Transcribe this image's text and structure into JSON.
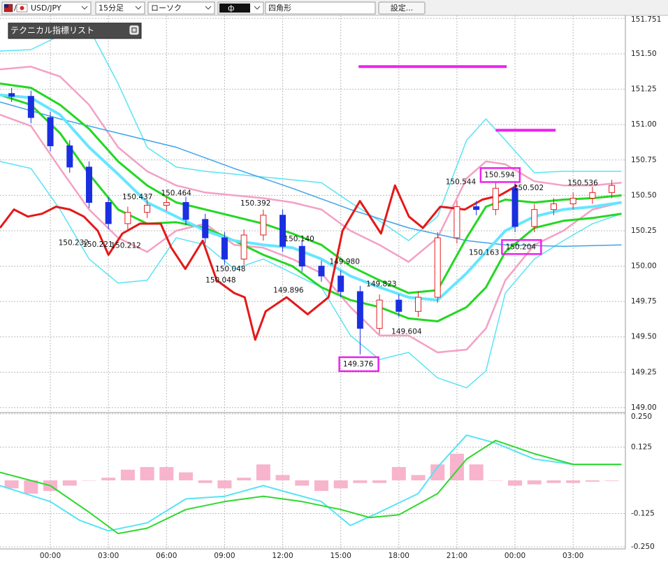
{
  "toolbar": {
    "symbol": "USD/JPY",
    "timeframe": "15分足",
    "chart_style": "ローソク",
    "draw_tool": "四角形",
    "settings": "設定..."
  },
  "indicator_list": "テクニカル指標リスト",
  "chart_data": [
    {
      "type": "candlestick",
      "xlim": [
        -2.6,
        29.7
      ],
      "ylim": [
        148.965,
        151.772
      ],
      "yticks": [
        {
          "value": 149,
          "label": "149.00"
        },
        149.25,
        {
          "value": 149.5,
          "label": "149.50"
        },
        149.75,
        {
          "value": 150,
          "label": "150.00"
        },
        150.25,
        {
          "value": 150.5,
          "label": "150.50"
        },
        150.75,
        {
          "value": 151,
          "label": "151.00"
        },
        151.25,
        {
          "value": 151.5,
          "label": "151.50"
        },
        151.751
      ],
      "grid": true,
      "up_color": "#e02020",
      "down_color": "#1a2fe0",
      "x": [
        -2,
        -1,
        0,
        1,
        2,
        3,
        4,
        5,
        6,
        7,
        8,
        9,
        10,
        11,
        12,
        13,
        14,
        15,
        16,
        17,
        18,
        19,
        20,
        21,
        22,
        23,
        24,
        25,
        26,
        27,
        28,
        29
      ],
      "open": [
        151.22,
        151.2,
        151.05,
        150.85,
        150.7,
        150.45,
        150.3,
        150.38,
        150.43,
        150.45,
        150.33,
        150.2,
        150.05,
        150.22,
        150.36,
        150.14,
        150.0,
        149.93,
        149.82,
        149.56,
        149.76,
        149.68,
        149.78,
        150.2,
        150.42,
        150.4,
        150.55,
        150.28,
        150.4,
        150.44,
        150.48,
        150.52
      ],
      "high": [
        151.26,
        151.24,
        151.09,
        150.89,
        150.74,
        150.49,
        150.42,
        150.47,
        150.49,
        150.49,
        150.37,
        150.24,
        150.26,
        150.4,
        150.4,
        150.18,
        150.04,
        149.97,
        149.86,
        149.8,
        149.8,
        149.82,
        150.24,
        150.46,
        150.46,
        150.594,
        150.59,
        150.44,
        150.48,
        150.52,
        150.56,
        150.61
      ],
      "low": [
        151.16,
        151.01,
        150.81,
        150.66,
        150.41,
        150.26,
        150.26,
        150.34,
        150.39,
        150.29,
        150.16,
        150.01,
        150.01,
        150.18,
        150.1,
        149.96,
        149.89,
        149.78,
        149.376,
        149.52,
        149.64,
        149.64,
        149.74,
        150.16,
        150.36,
        150.36,
        150.24,
        150.24,
        150.36,
        150.4,
        150.44,
        150.48
      ],
      "close": [
        151.2,
        151.05,
        150.85,
        150.7,
        150.45,
        150.3,
        150.38,
        150.43,
        150.45,
        150.33,
        150.2,
        150.05,
        150.22,
        150.36,
        150.14,
        150.0,
        149.93,
        149.82,
        149.56,
        149.76,
        149.68,
        149.78,
        150.2,
        150.42,
        150.4,
        150.55,
        150.28,
        150.4,
        150.44,
        150.48,
        150.52,
        150.57
      ],
      "overlays": [
        {
          "color": "#58e4f4",
          "width": 1.5,
          "x": [
            -2.6,
            -1,
            0.5,
            2,
            3.5,
            5,
            6.5,
            8,
            9.5,
            11,
            12.5,
            14,
            15.5,
            17,
            18.5,
            20,
            21.5,
            22.5,
            23.5,
            25,
            26.5,
            28,
            29.5
          ],
          "values": [
            151.52,
            151.53,
            151.63,
            151.68,
            151.29,
            150.84,
            150.7,
            150.67,
            150.65,
            150.63,
            150.61,
            150.59,
            150.45,
            150.32,
            150.18,
            150.35,
            150.89,
            151.04,
            150.89,
            150.66,
            150.67,
            150.67,
            150.67
          ]
        },
        {
          "color": "#58e4f4",
          "width": 1.5,
          "x": [
            -2.6,
            -1,
            0.5,
            2,
            3.5,
            5,
            6.5,
            8,
            9.5,
            11,
            12.5,
            14,
            15.5,
            17,
            18.5,
            20,
            21.5,
            22.5,
            23.5,
            25,
            26.5,
            28,
            29.5
          ],
          "values": [
            150.74,
            150.69,
            150.4,
            150.05,
            149.88,
            149.9,
            150.2,
            150.15,
            149.98,
            150.05,
            149.95,
            149.85,
            149.51,
            149.34,
            149.39,
            149.21,
            149.14,
            149.26,
            149.81,
            150.05,
            150.18,
            150.3,
            150.37
          ]
        },
        {
          "color": "#f4a0c4",
          "width": 2.5,
          "x": [
            -2.6,
            -1,
            0.5,
            2,
            3.5,
            5,
            6.5,
            8,
            9.5,
            11,
            12.5,
            14,
            15.5,
            17,
            18.5,
            20,
            21.5,
            22.5,
            23.5,
            25,
            26.5,
            28,
            29.5
          ],
          "values": [
            151.39,
            151.41,
            151.34,
            151.14,
            150.84,
            150.67,
            150.57,
            150.52,
            150.5,
            150.48,
            150.45,
            150.4,
            150.25,
            150.15,
            150.03,
            150.2,
            150.62,
            150.74,
            150.72,
            150.6,
            150.57,
            150.57,
            150.59
          ]
        },
        {
          "color": "#f4a0c4",
          "width": 2.5,
          "x": [
            -2.6,
            -1,
            0.5,
            2,
            3.5,
            5,
            6.5,
            8,
            9.5,
            11,
            12.5,
            14,
            15.5,
            17,
            18.5,
            20,
            21.5,
            22.5,
            23.5,
            25,
            26.5,
            28,
            29.5
          ],
          "values": [
            151.07,
            150.99,
            150.69,
            150.4,
            150.2,
            150.1,
            150.25,
            150.3,
            150.15,
            150.13,
            150.05,
            149.95,
            149.71,
            149.51,
            149.51,
            149.39,
            149.41,
            149.56,
            149.9,
            150.15,
            150.25,
            150.4,
            150.45
          ]
        },
        {
          "color": "#3ca4ea",
          "width": 1.5,
          "x": [
            -2.6,
            0.5,
            3.5,
            6.5,
            9.5,
            12.5,
            15.5,
            18.5,
            21.5,
            23.5,
            26.5,
            29.5
          ],
          "values": [
            151.16,
            151.04,
            150.94,
            150.84,
            150.69,
            150.55,
            150.4,
            150.27,
            150.18,
            150.15,
            150.14,
            150.15
          ]
        },
        {
          "color": "#22d822",
          "width": 3,
          "x": [
            -2.6,
            -1,
            0.5,
            2,
            3.5,
            5,
            6.5,
            8,
            9.5,
            11,
            12.5,
            14,
            15.5,
            17,
            18.5,
            20,
            21.5,
            22.5,
            23.5,
            25,
            26.5,
            28,
            29.5
          ],
          "values": [
            151.29,
            151.26,
            151.14,
            150.97,
            150.74,
            150.57,
            150.45,
            150.4,
            150.35,
            150.3,
            150.23,
            150.15,
            150.0,
            149.9,
            149.81,
            149.83,
            150.2,
            150.42,
            150.47,
            150.45,
            150.47,
            150.48,
            150.5
          ]
        },
        {
          "color": "#22d822",
          "width": 3,
          "x": [
            -2.6,
            -1,
            0.5,
            2,
            3.5,
            5,
            6.5,
            8,
            9.5,
            11,
            12.5,
            14,
            15.5,
            17,
            18.5,
            20,
            21.5,
            22.5,
            23.5,
            25,
            26.5,
            28,
            29.5
          ],
          "values": [
            151.21,
            151.14,
            150.94,
            150.65,
            150.4,
            150.3,
            150.31,
            150.27,
            150.18,
            150.08,
            150.0,
            149.85,
            149.76,
            149.71,
            149.63,
            149.61,
            149.71,
            149.85,
            150.1,
            150.27,
            150.32,
            150.34,
            150.37
          ]
        },
        {
          "color": "#66e6ff",
          "width": 4,
          "x": [
            -2.6,
            -1,
            0.5,
            2,
            3.5,
            5,
            6.5,
            8,
            9.5,
            11,
            12.5,
            14,
            15.5,
            17,
            18.5,
            20,
            21.5,
            22.5,
            23.5,
            25,
            26.5,
            28,
            29.5
          ],
          "values": [
            151.21,
            151.19,
            151.07,
            150.84,
            150.65,
            150.45,
            150.35,
            150.25,
            150.18,
            150.15,
            150.13,
            150.05,
            149.93,
            149.85,
            149.78,
            149.76,
            149.95,
            150.1,
            150.25,
            150.35,
            150.4,
            150.42,
            150.45
          ]
        },
        {
          "color": "#e41818",
          "width": 3,
          "x": [
            -2.6,
            -1.88,
            -1.16,
            -0.43,
            0.29,
            1.01,
            1.73,
            2.45,
            3.0,
            3.72,
            4.62,
            5.7,
            6.25,
            6.97,
            7.87,
            8.59,
            9.49,
            10.04,
            10.58,
            11.12,
            12.2,
            13.29,
            14.37,
            15.09,
            15.99,
            17.08,
            17.8,
            18.52,
            19.24,
            20.14,
            21.41,
            22.31,
            23.21,
            24.12
          ],
          "values": [
            150.27,
            150.4,
            150.35,
            150.37,
            150.42,
            150.4,
            150.35,
            150.25,
            150.08,
            150.23,
            150.3,
            150.3,
            150.13,
            149.98,
            150.18,
            149.9,
            149.81,
            149.78,
            149.48,
            149.68,
            149.78,
            149.66,
            149.78,
            150.25,
            150.46,
            150.23,
            150.57,
            150.35,
            150.27,
            150.42,
            150.4,
            150.47,
            150.5,
            150.57
          ]
        }
      ],
      "annotations": [
        {
          "value": 150.232,
          "label": "150.232",
          "x": 1.2,
          "side": "low"
        },
        {
          "value": 150.221,
          "label": "150.221",
          "x": 2.45,
          "side": "low"
        },
        {
          "value": 150.212,
          "label": "150.212",
          "x": 3.9,
          "side": "low"
        },
        {
          "value": 150.437,
          "label": "150.437",
          "x": 4.5,
          "side": "high"
        },
        {
          "value": 150.464,
          "label": "150.464",
          "x": 6.5,
          "side": "high"
        },
        {
          "value": 150.392,
          "label": "150.392",
          "x": 10.6,
          "side": "high"
        },
        {
          "value": 150.14,
          "label": "150.140",
          "x": 12.85,
          "side": "high"
        },
        {
          "value": 150.048,
          "label": "150.048",
          "x": 9.3,
          "side": "low"
        },
        {
          "value": 150.048,
          "label": "150.048",
          "x": 8.8,
          "side": "low2"
        },
        {
          "value": 149.896,
          "label": "149.896",
          "x": 12.3,
          "side": "low"
        },
        {
          "value": 149.98,
          "label": "149.980",
          "x": 15.2,
          "side": "high"
        },
        {
          "value": 149.823,
          "label": "149.823",
          "x": 17.1,
          "side": "high"
        },
        {
          "value": 149.604,
          "label": "149.604",
          "x": 18.4,
          "side": "low"
        },
        {
          "value": 149.376,
          "label": "149.376",
          "x": 15.9,
          "side": "low",
          "boxed": true
        },
        {
          "value": 150.544,
          "label": "150.544",
          "x": 21.2,
          "side": "high"
        },
        {
          "value": 150.594,
          "label": "150.594",
          "x": 23.2,
          "side": "high",
          "boxed": true
        },
        {
          "value": 150.502,
          "label": "150.502",
          "x": 24.7,
          "side": "high"
        },
        {
          "value": 150.163,
          "label": "150.163",
          "x": 22.4,
          "side": "low"
        },
        {
          "value": 150.204,
          "label": "150.204",
          "x": 24.3,
          "side": "low",
          "boxed": true
        },
        {
          "value": 150.536,
          "label": "150.536",
          "x": 27.5,
          "side": "high"
        }
      ],
      "drawn_lines": [
        {
          "color": "#ee22ee",
          "y": 151.41,
          "x": [
            15.92,
            23.57
          ]
        },
        {
          "color": "#ee22ee",
          "y": 150.96,
          "x": [
            23.0,
            26.1
          ]
        }
      ]
    },
    {
      "type": "macd",
      "xlim": [
        -2.6,
        29.7
      ],
      "ylim": [
        -0.258,
        0.255
      ],
      "xticks": [
        {
          "value": 0,
          "label": "00:00"
        },
        {
          "value": 3,
          "label": "03:00"
        },
        {
          "value": 6,
          "label": "06:00"
        },
        {
          "value": 9,
          "label": "09:00"
        },
        {
          "value": 12,
          "label": "12:00"
        },
        {
          "value": 15,
          "label": "15:00"
        },
        {
          "value": 18,
          "label": "18:00"
        },
        {
          "value": 21,
          "label": "21:00"
        },
        {
          "value": 24,
          "label": "00:00"
        },
        {
          "value": 27,
          "label": "03:00"
        }
      ],
      "yticks": [
        {
          "value": 0.25,
          "label": "0.250"
        },
        0.125,
        -0.125,
        {
          "value": -0.25,
          "label": "-0.250"
        }
      ],
      "grid": true,
      "histogram": {
        "color": "#f7b4cc",
        "x": [
          -2,
          -1,
          0,
          1,
          2,
          3,
          4,
          5,
          6,
          7,
          8,
          9,
          10,
          11,
          12,
          13,
          14,
          15,
          16,
          17,
          18,
          19,
          20,
          21,
          22,
          23,
          24,
          25,
          26,
          27,
          28,
          29
        ],
        "values": [
          -0.03,
          -0.05,
          -0.04,
          -0.02,
          0.0,
          0.01,
          0.04,
          0.05,
          0.05,
          0.03,
          -0.01,
          -0.03,
          0.01,
          0.06,
          0.02,
          -0.02,
          -0.04,
          -0.03,
          -0.01,
          -0.01,
          0.05,
          0.02,
          0.06,
          0.1,
          0.06,
          0.0,
          -0.02,
          -0.015,
          -0.01,
          -0.01,
          -0.005,
          -0.002
        ]
      },
      "series": [
        {
          "color": "#55e4f4",
          "x": [
            -2.6,
            0,
            1.5,
            3,
            5,
            7,
            9,
            11,
            12,
            14,
            15.5,
            17,
            19,
            20,
            21.5,
            23,
            25,
            27,
            29.5
          ],
          "values": [
            -0.02,
            -0.08,
            -0.15,
            -0.19,
            -0.16,
            -0.07,
            -0.06,
            -0.02,
            -0.04,
            -0.08,
            -0.17,
            -0.12,
            -0.05,
            0.05,
            0.17,
            0.14,
            0.08,
            0.06,
            0.06
          ]
        },
        {
          "color": "#30d830",
          "x": [
            -2.6,
            0,
            2,
            3.5,
            5,
            7,
            9,
            11,
            13,
            15,
            16.5,
            18,
            20,
            21.5,
            23,
            25,
            27,
            29.5
          ],
          "values": [
            0.03,
            -0.02,
            -0.12,
            -0.2,
            -0.18,
            -0.11,
            -0.08,
            -0.06,
            -0.08,
            -0.11,
            -0.14,
            -0.13,
            -0.05,
            0.08,
            0.15,
            0.1,
            0.06,
            0.06
          ]
        }
      ]
    }
  ]
}
